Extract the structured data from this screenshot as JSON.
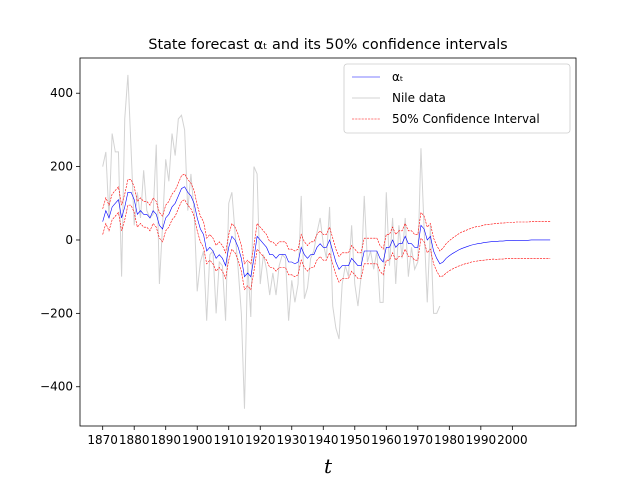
{
  "chart_data": {
    "type": "line",
    "title": "State forecast αₜ and its 50% confidence intervals",
    "x_label": "t",
    "x": [
      1870,
      1871,
      1872,
      1873,
      1874,
      1875,
      1876,
      1877,
      1878,
      1879,
      1880,
      1881,
      1882,
      1883,
      1884,
      1885,
      1886,
      1887,
      1888,
      1889,
      1890,
      1891,
      1892,
      1893,
      1894,
      1895,
      1896,
      1897,
      1898,
      1899,
      1900,
      1901,
      1902,
      1903,
      1904,
      1905,
      1906,
      1907,
      1908,
      1909,
      1910,
      1911,
      1912,
      1913,
      1914,
      1915,
      1916,
      1917,
      1918,
      1919,
      1920,
      1921,
      1922,
      1923,
      1924,
      1925,
      1926,
      1927,
      1928,
      1929,
      1930,
      1931,
      1932,
      1933,
      1934,
      1935,
      1936,
      1937,
      1938,
      1939,
      1940,
      1941,
      1942,
      1943,
      1944,
      1945,
      1946,
      1947,
      1948,
      1949,
      1950,
      1951,
      1952,
      1953,
      1954,
      1955,
      1956,
      1957,
      1958,
      1959,
      1960,
      1961,
      1962,
      1963,
      1964,
      1965,
      1966,
      1967,
      1968,
      1969,
      1970,
      1971,
      1972,
      1973,
      1974,
      1975,
      1976,
      1977,
      1978,
      1979,
      1980,
      1981,
      1982,
      1983,
      1984,
      1985,
      1986,
      1987,
      1988,
      1989,
      1990,
      1991,
      1992,
      1993,
      1994,
      1995,
      1996,
      1997,
      1998,
      1999,
      2000,
      2001,
      2002,
      2003,
      2004,
      2005,
      2006,
      2007,
      2008,
      2009,
      2010,
      2011,
      2012
    ],
    "series": [
      {
        "name": "αₜ",
        "color": "#0000ff",
        "values": [
          50,
          80,
          60,
          90,
          100,
          110,
          60,
          90,
          130,
          130,
          110,
          70,
          80,
          70,
          70,
          60,
          80,
          70,
          40,
          30,
          60,
          70,
          90,
          100,
          120,
          140,
          145,
          130,
          120,
          100,
          60,
          30,
          15,
          -30,
          -20,
          -30,
          -50,
          -40,
          -50,
          -70,
          -20,
          10,
          0,
          -20,
          -50,
          -100,
          -90,
          -100,
          -50,
          10,
          0,
          -10,
          -20,
          -40,
          -40,
          -50,
          -40,
          -40,
          -40,
          -60,
          -60,
          -65,
          -60,
          -20,
          -40,
          -50,
          -40,
          -40,
          -20,
          -10,
          -20,
          -20,
          0,
          -30,
          -60,
          -80,
          -70,
          -70,
          -70,
          -50,
          -60,
          -70,
          -70,
          -30,
          -30,
          -30,
          -30,
          -30,
          -50,
          -60,
          -20,
          -20,
          0,
          -20,
          -10,
          -10,
          10,
          -10,
          -10,
          -20,
          -20,
          40,
          30,
          0,
          10,
          -30,
          -50,
          -65,
          -60,
          -50,
          -43,
          -37,
          -32,
          -27,
          -23,
          -20,
          -17,
          -14,
          -12,
          -10,
          -9,
          -7,
          -6,
          -5,
          -4,
          -4,
          -3,
          -3,
          -2,
          -2,
          -2,
          -1,
          -1,
          -1,
          -1,
          -1,
          0,
          0,
          0,
          0,
          0,
          0,
          0
        ]
      },
      {
        "name": "Nile data",
        "color": "#d3d3d3",
        "values": [
          200,
          240,
          60,
          290,
          240,
          240,
          -100,
          330,
          450,
          250,
          40,
          130,
          60,
          190,
          80,
          60,
          70,
          260,
          -120,
          40,
          220,
          160,
          290,
          230,
          330,
          340,
          300,
          80,
          180,
          80,
          -140,
          -60,
          -30,
          -220,
          -40,
          -30,
          -200,
          -60,
          -70,
          -220,
          100,
          130,
          20,
          -80,
          -200,
          -460,
          -60,
          -210,
          200,
          180,
          -120,
          -40,
          -80,
          -150,
          -90,
          -150,
          -70,
          -40,
          -50,
          -220,
          -110,
          -170,
          -120,
          120,
          -160,
          -130,
          -50,
          -30,
          20,
          60,
          -10,
          -50,
          90,
          -180,
          -240,
          -270,
          -120,
          -70,
          -100,
          40,
          -120,
          -180,
          -100,
          120,
          -60,
          -30,
          -80,
          -30,
          -170,
          -170,
          130,
          -70,
          60,
          -120,
          40,
          -50,
          60,
          -100,
          -20,
          -80,
          -60,
          250,
          30,
          -170,
          40,
          -200,
          -200,
          -180,
          null,
          null,
          null,
          null,
          null,
          null,
          null,
          null,
          null,
          null,
          null,
          null,
          null,
          null,
          null,
          null,
          null,
          null,
          null,
          null,
          null,
          null,
          null,
          null,
          null,
          null,
          null,
          null,
          null,
          null,
          null,
          null,
          null,
          null,
          null
        ]
      }
    ],
    "band": {
      "name": "50% Confidence Interval",
      "color": "#ff0000",
      "upper": [
        85,
        115,
        95,
        125,
        135,
        145,
        95,
        125,
        165,
        165,
        145,
        105,
        115,
        105,
        105,
        95,
        115,
        105,
        75,
        65,
        95,
        105,
        125,
        135,
        155,
        175,
        180,
        165,
        155,
        135,
        95,
        65,
        50,
        5,
        15,
        5,
        -15,
        -5,
        -15,
        -35,
        15,
        45,
        35,
        15,
        -15,
        -65,
        -55,
        -65,
        -15,
        45,
        35,
        25,
        15,
        -5,
        -5,
        -15,
        -5,
        -5,
        -5,
        -25,
        -25,
        -30,
        -25,
        15,
        -5,
        -15,
        -5,
        -5,
        15,
        25,
        15,
        15,
        35,
        5,
        -25,
        -45,
        -35,
        -35,
        -35,
        -15,
        -25,
        -35,
        -35,
        5,
        5,
        5,
        5,
        5,
        -15,
        -25,
        15,
        15,
        35,
        15,
        25,
        25,
        45,
        25,
        25,
        15,
        15,
        75,
        65,
        35,
        45,
        5,
        -15,
        -30,
        -22,
        -10,
        -2,
        5,
        11,
        17,
        22,
        25,
        29,
        32,
        35,
        37,
        38,
        41,
        42,
        43,
        44,
        45,
        46,
        46,
        47,
        47,
        47,
        49,
        49,
        49,
        49,
        49,
        50,
        50,
        50,
        50,
        50,
        50,
        50
      ],
      "lower": [
        15,
        45,
        25,
        55,
        65,
        75,
        25,
        55,
        95,
        95,
        75,
        35,
        45,
        35,
        35,
        25,
        45,
        35,
        5,
        -5,
        25,
        35,
        55,
        65,
        85,
        105,
        110,
        95,
        85,
        65,
        25,
        -5,
        -20,
        -65,
        -55,
        -65,
        -85,
        -75,
        -85,
        -105,
        -55,
        -25,
        -35,
        -55,
        -85,
        -135,
        -125,
        -135,
        -85,
        -25,
        -35,
        -45,
        -55,
        -75,
        -75,
        -85,
        -75,
        -75,
        -75,
        -95,
        -95,
        -100,
        -95,
        -55,
        -75,
        -85,
        -75,
        -75,
        -55,
        -45,
        -55,
        -55,
        -35,
        -65,
        -95,
        -115,
        -105,
        -105,
        -105,
        -85,
        -95,
        -105,
        -105,
        -65,
        -65,
        -65,
        -65,
        -65,
        -85,
        -95,
        -55,
        -55,
        -35,
        -55,
        -45,
        -45,
        -25,
        -45,
        -45,
        -55,
        -55,
        5,
        -5,
        -35,
        -25,
        -65,
        -85,
        -100,
        -98,
        -90,
        -84,
        -79,
        -75,
        -71,
        -68,
        -65,
        -63,
        -60,
        -59,
        -57,
        -56,
        -55,
        -54,
        -53,
        -52,
        -53,
        -52,
        -52,
        -51,
        -51,
        -51,
        -51,
        -51,
        -51,
        -51,
        -51,
        -50,
        -50,
        -50,
        -50,
        -50,
        -50,
        -50
      ]
    },
    "xlim": [
      1862.8,
      2020.2
    ],
    "ylim": [
      -507,
      496
    ],
    "xticks": [
      1870,
      1880,
      1890,
      1900,
      1910,
      1920,
      1930,
      1940,
      1950,
      1960,
      1970,
      1980,
      1990,
      2000
    ],
    "yticks": [
      {
        "value": -400,
        "label": "−400"
      },
      {
        "value": -200,
        "label": "−200"
      },
      0,
      200,
      400
    ],
    "legend": "upper right"
  }
}
